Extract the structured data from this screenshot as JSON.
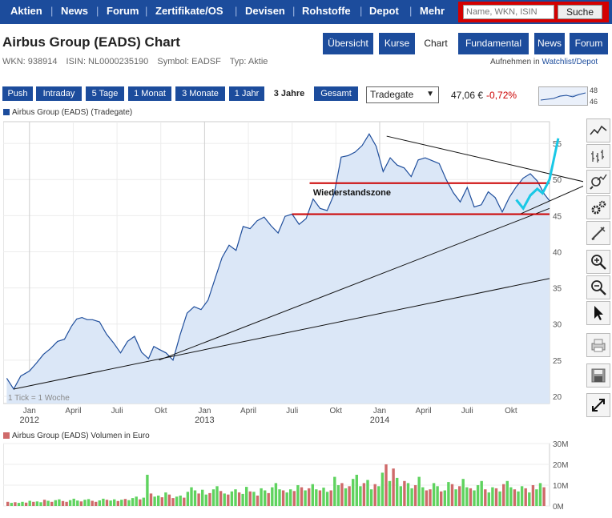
{
  "nav": {
    "items": [
      "Aktien",
      "News",
      "Forum",
      "Zertifikate/OS",
      "Devisen",
      "Rohstoffe",
      "Depot",
      "Mehr"
    ],
    "search_placeholder": "Name, WKN, ISIN",
    "search_button": "Suche"
  },
  "header": {
    "title": "Airbus Group (EADS) Chart",
    "wkn": "WKN: 938914",
    "isin": "ISIN: NL0000235190",
    "symbol": "Symbol: EADSF",
    "type": "Typ: Aktie",
    "watchlist": "Aufnehmen in",
    "watchlist_link": "Watchlist/Depot"
  },
  "tabs": [
    "Übersicht",
    "Kurse",
    "Chart",
    "Fundamental",
    "News",
    "Forum"
  ],
  "active_tab": "Chart",
  "ranges": [
    "Push",
    "Intraday",
    "5 Tage",
    "1 Monat",
    "3 Monate",
    "1 Jahr",
    "3 Jahre",
    "Gesamt"
  ],
  "active_range": "3 Jahre",
  "exchange": "Tradegate",
  "quote": {
    "price": "47,06 €",
    "change": "-0,72%"
  },
  "mini_chart": {
    "labels": [
      "48",
      "46"
    ]
  },
  "colors": {
    "nav": "#1c4c9c",
    "search_bg": "#d40000",
    "price_line": "#1f4e9c",
    "area": "#dbe7f7",
    "resistance": "#cc0000",
    "annotation": "#19c8e6",
    "vol_up": "#5fd35f",
    "vol_down": "#cf6a6a"
  },
  "chart_data": {
    "type": "line",
    "title": "Airbus Group (EADS) (Tradegate)",
    "note": "1 Tick = 1 Woche",
    "ylim": [
      19,
      58
    ],
    "yticks": [
      20,
      25,
      30,
      35,
      40,
      45,
      50,
      55
    ],
    "xticks": [
      {
        "label": "Jan",
        "sub": "2012",
        "t": 0.0
      },
      {
        "label": "April",
        "sub": "",
        "t": 0.25
      },
      {
        "label": "Juli",
        "sub": "",
        "t": 0.5
      },
      {
        "label": "Okt",
        "sub": "",
        "t": 0.75
      },
      {
        "label": "Jan",
        "sub": "2013",
        "t": 1.0
      },
      {
        "label": "April",
        "sub": "",
        "t": 1.25
      },
      {
        "label": "Juli",
        "sub": "",
        "t": 1.5
      },
      {
        "label": "Okt",
        "sub": "",
        "t": 1.75
      },
      {
        "label": "Jan",
        "sub": "2014",
        "t": 2.0
      },
      {
        "label": "April",
        "sub": "",
        "t": 2.25
      },
      {
        "label": "Juli",
        "sub": "",
        "t": 2.5
      },
      {
        "label": "Okt",
        "sub": "",
        "t": 2.75
      }
    ],
    "series": [
      {
        "name": "Airbus Group (EADS) (Tradegate)",
        "t": [
          -0.13,
          -0.09,
          -0.05,
          0.0,
          0.04,
          0.08,
          0.12,
          0.16,
          0.2,
          0.24,
          0.27,
          0.3,
          0.33,
          0.36,
          0.4,
          0.44,
          0.48,
          0.52,
          0.56,
          0.6,
          0.64,
          0.68,
          0.71,
          0.74,
          0.78,
          0.82,
          0.86,
          0.9,
          0.94,
          0.98,
          1.02,
          1.06,
          1.1,
          1.14,
          1.18,
          1.22,
          1.26,
          1.3,
          1.34,
          1.38,
          1.42,
          1.46,
          1.5,
          1.54,
          1.58,
          1.62,
          1.66,
          1.7,
          1.74,
          1.78,
          1.82,
          1.86,
          1.9,
          1.94,
          1.98,
          2.02,
          2.06,
          2.1,
          2.14,
          2.18,
          2.22,
          2.26,
          2.3,
          2.34,
          2.38,
          2.42,
          2.46,
          2.5,
          2.54,
          2.58,
          2.62,
          2.66,
          2.7,
          2.74,
          2.78,
          2.82,
          2.86,
          2.9,
          2.94,
          2.97
        ],
        "values": [
          22.5,
          21.0,
          22.8,
          23.5,
          24.6,
          25.8,
          26.6,
          27.6,
          27.9,
          29.7,
          30.7,
          30.9,
          30.6,
          30.6,
          30.3,
          28.6,
          27.4,
          26.0,
          27.6,
          28.3,
          26.1,
          25.2,
          26.9,
          26.5,
          26.0,
          25.0,
          28.5,
          31.5,
          32.4,
          32.0,
          33.3,
          36.3,
          39.2,
          40.9,
          40.2,
          43.5,
          43.2,
          44.3,
          44.8,
          43.6,
          42.6,
          44.9,
          45.2,
          43.8,
          44.6,
          47.3,
          46.0,
          45.7,
          48.0,
          53.1,
          53.3,
          53.8,
          54.7,
          56.3,
          54.6,
          51.1,
          53.0,
          52.0,
          51.6,
          50.4,
          52.7,
          53.0,
          52.6,
          52.2,
          50.0,
          48.2,
          46.9,
          48.9,
          46.2,
          46.5,
          48.3,
          47.5,
          45.5,
          47.5,
          49.0,
          50.2,
          50.8,
          49.8,
          48.0,
          47.06
        ]
      }
    ],
    "trendlines": [
      {
        "name": "support",
        "t": [
          -0.09,
          2.97
        ],
        "values": [
          21.0,
          36.3
        ]
      },
      {
        "name": "rising",
        "t": [
          0.74,
          2.97
        ],
        "values": [
          25.0,
          46.0
        ]
      },
      {
        "name": "falling",
        "t": [
          2.04,
          3.2
        ],
        "values": [
          56.0,
          49.5
        ]
      },
      {
        "name": "rising-steep",
        "t": [
          2.8,
          3.2
        ],
        "values": [
          45.2,
          49.5
        ]
      }
    ],
    "resistance": {
      "label": "Wiederstandszone",
      "lines": [
        {
          "t": [
            1.6,
            2.97
          ],
          "value": 49.5
        },
        {
          "t": [
            1.5,
            2.97
          ],
          "value": 45.2
        }
      ]
    },
    "volume": {
      "title": "Airbus Group (EADS) Volumen in Euro",
      "ylim": [
        0,
        30
      ],
      "yticks": [
        "0M",
        "10M",
        "20M",
        "30M"
      ],
      "up_weeks": [
        0,
        1,
        0,
        1,
        1,
        0,
        1,
        0,
        1,
        1,
        0,
        1,
        0,
        1,
        1,
        0,
        0,
        1,
        1,
        1,
        0,
        1,
        1,
        0,
        0,
        1,
        1,
        0,
        1,
        1,
        0,
        1,
        0,
        1,
        1,
        1,
        0,
        1,
        1,
        0,
        1,
        1,
        0,
        1,
        0,
        0,
        1,
        1,
        0,
        1,
        1,
        1,
        0,
        1,
        1,
        0,
        1,
        1,
        0,
        1,
        0,
        1,
        1,
        0,
        1,
        1,
        0,
        1,
        0,
        1,
        1,
        0,
        1,
        1,
        1,
        0,
        1,
        1,
        0,
        1,
        0,
        1,
        0,
        1,
        1,
        0,
        1,
        1,
        0,
        1,
        1,
        0,
        1,
        0,
        1,
        1,
        1,
        0,
        1,
        1,
        0,
        1,
        1,
        0,
        1,
        0,
        1,
        1,
        0,
        1,
        1,
        0,
        1,
        1,
        0,
        0,
        1,
        1,
        0,
        1,
        1,
        0,
        1,
        0,
        1,
        1,
        0,
        1,
        1,
        1,
        0,
        1,
        1,
        0,
        1,
        0,
        1,
        1,
        0,
        1,
        1,
        0,
        1,
        0,
        1,
        1,
        0,
        1,
        1
      ],
      "values": [
        2,
        1.5,
        1.8,
        1.5,
        2,
        1.6,
        2.5,
        2,
        2.2,
        1.8,
        3,
        2.5,
        2,
        2.8,
        3.2,
        2.4,
        2,
        2.8,
        3.5,
        2.6,
        2.2,
        3,
        3.3,
        2.5,
        2,
        2.7,
        3.5,
        3,
        2.6,
        3.2,
        2.4,
        3,
        3.4,
        2.8,
        3.8,
        4.5,
        3.2,
        4,
        15,
        6,
        4.5,
        5,
        4.2,
        6.5,
        5.5,
        3.8,
        4.5,
        5,
        4,
        6.8,
        9,
        7.5,
        6,
        7.8,
        5.5,
        6.2,
        8,
        9.5,
        7.2,
        6,
        5.5,
        7,
        8,
        6.5,
        5.8,
        9.2,
        7,
        6.8,
        5,
        8.5,
        7.5,
        6.2,
        9,
        11,
        8,
        7.5,
        6.5,
        8,
        7.2,
        10,
        9,
        7.5,
        8.5,
        10.5,
        8,
        7.5,
        8.8,
        6.8,
        7.5,
        14,
        10,
        11,
        8.5,
        9.5,
        13,
        15,
        9.5,
        11,
        12.5,
        8,
        10.5,
        9.5,
        16,
        20,
        12,
        18,
        13.5,
        9.5,
        12,
        11,
        8.5,
        10,
        14,
        9,
        7.5,
        8,
        11,
        9.5,
        7,
        7.5,
        11.5,
        10.5,
        8,
        9.5,
        13,
        9,
        8.5,
        7.5,
        10,
        12,
        8,
        6.5,
        9,
        8.5,
        7,
        10.5,
        12,
        9,
        8,
        7,
        9.5,
        8.5,
        6.5,
        10,
        8,
        11,
        9
      ]
    }
  }
}
